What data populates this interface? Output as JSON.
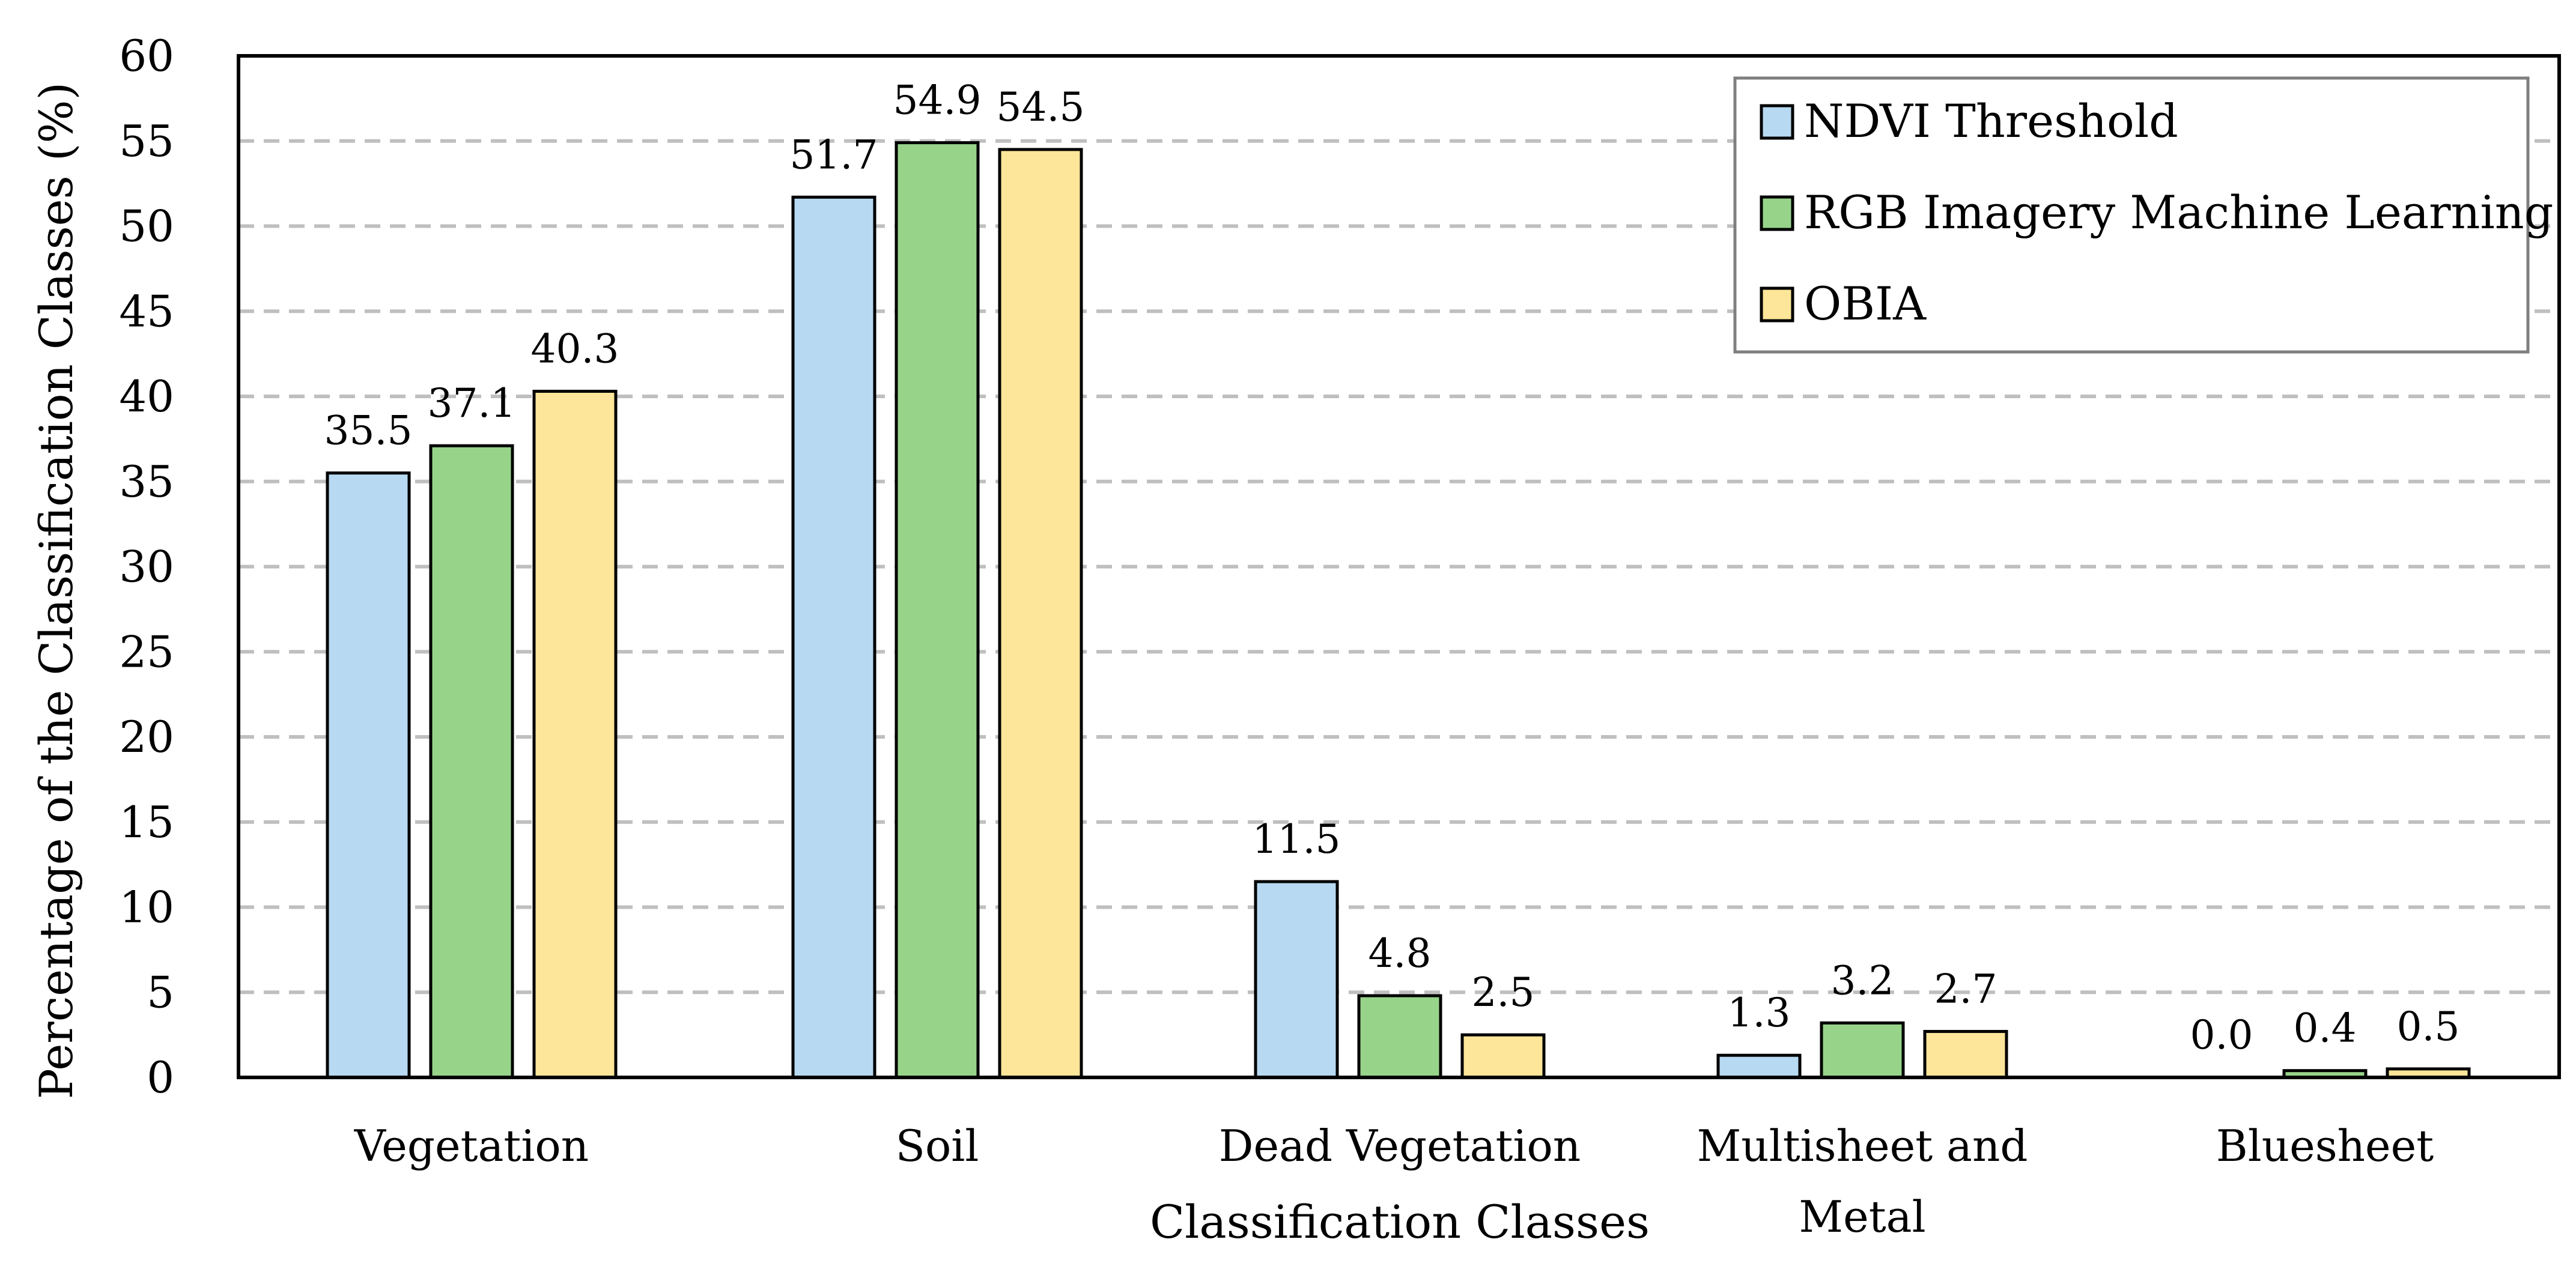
{
  "chart_data": {
    "type": "bar",
    "title": "",
    "xlabel": "Classification Classes",
    "ylabel": "Percentage of the Classification Classes (%)",
    "categories": [
      [
        "Vegetation"
      ],
      [
        "Soil"
      ],
      [
        "Dead Vegetation"
      ],
      [
        "Multisheet and",
        "Metal"
      ],
      [
        "Bluesheet"
      ]
    ],
    "series": [
      {
        "name": "NDVI Threshold",
        "color": "#b7d9f1",
        "values": [
          35.5,
          51.7,
          11.5,
          1.3,
          0.0
        ]
      },
      {
        "name": "RGB Imagery Machine Learning",
        "color": "#97d48a",
        "values": [
          37.1,
          54.9,
          4.8,
          3.2,
          0.4
        ]
      },
      {
        "name": "OBIA",
        "color": "#fde699",
        "values": [
          40.3,
          54.5,
          2.5,
          2.7,
          0.5
        ]
      }
    ],
    "ylim": [
      0,
      60
    ],
    "yticks": [
      0,
      5,
      10,
      15,
      20,
      25,
      30,
      35,
      40,
      45,
      50,
      55,
      60
    ],
    "grid": "horizontal-dashed",
    "legend": "top-right",
    "gridColor": "#bfbfbf",
    "legendBorderColor": "#7f7f7f"
  }
}
